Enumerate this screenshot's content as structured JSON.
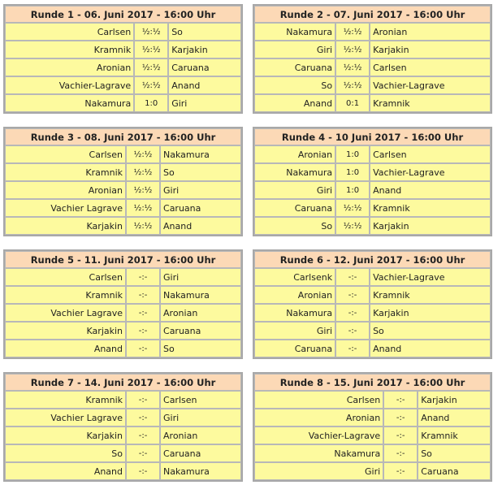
{
  "rounds": [
    {
      "title": "Runde 1 - 06. Juni 2017 - 16:00 Uhr",
      "games": [
        [
          "Carlsen",
          "½:½",
          "So"
        ],
        [
          "Kramnik",
          "½:½",
          "Karjakin"
        ],
        [
          "Aronian",
          "½:½",
          "Caruana"
        ],
        [
          "Vachier-Lagrave",
          "½:½",
          "Anand"
        ],
        [
          "Nakamura",
          "1:0",
          "Giri"
        ]
      ]
    },
    {
      "title": "Runde 2 - 07. Juni 2017 - 16:00 Uhr",
      "games": [
        [
          "Nakamura",
          "½:½",
          "Aronian"
        ],
        [
          "Giri",
          "½:½",
          "Karjakin"
        ],
        [
          "Caruana",
          "½:½",
          "Carlsen"
        ],
        [
          "So",
          "½:½",
          "Vachier-Lagrave"
        ],
        [
          "Anand",
          "0:1",
          "Kramnik"
        ]
      ]
    },
    {
      "title": "Runde 3 - 08. Juni 2017 - 16:00 Uhr",
      "games": [
        [
          "Carlsen",
          "½:½",
          "Nakamura"
        ],
        [
          "Kramnik",
          "½:½",
          "So"
        ],
        [
          "Aronian",
          "½:½",
          "Giri"
        ],
        [
          "Vachier Lagrave",
          "½:½",
          "Caruana"
        ],
        [
          "Karjakin",
          "½:½",
          "Anand"
        ]
      ]
    },
    {
      "title": "Runde 4 - 10 Juni 2017 - 16:00 Uhr",
      "games": [
        [
          "Aronian",
          "1:0",
          "Carlsen"
        ],
        [
          "Nakamura",
          "1:0",
          "Vachier-Lagrave"
        ],
        [
          "Giri",
          "1:0",
          "Anand"
        ],
        [
          "Caruana",
          "½:½",
          "Kramnik"
        ],
        [
          "So",
          "½:½",
          "Karjakin"
        ]
      ]
    },
    {
      "title": "Runde 5 - 11. Juni 2017 - 16:00 Uhr",
      "games": [
        [
          "Carlsen",
          "-:-",
          "Giri"
        ],
        [
          "Kramnik",
          "-:-",
          "Nakamura"
        ],
        [
          "Vachier Lagrave",
          "-:-",
          "Aronian"
        ],
        [
          "Karjakin",
          "-:-",
          "Caruana"
        ],
        [
          "Anand",
          "-:-",
          "So"
        ]
      ]
    },
    {
      "title": "Runde 6 - 12. Juni 2017 - 16:00 Uhr",
      "games": [
        [
          "Carlsenk",
          "-:-",
          "Vachier-Lagrave"
        ],
        [
          "Aronian",
          "-:-",
          "Kramnik"
        ],
        [
          "Nakamura",
          "-:-",
          "Karjakin"
        ],
        [
          "Giri",
          "-:-",
          "So"
        ],
        [
          "Caruana",
          "-:-",
          "Anand"
        ]
      ]
    },
    {
      "title": "Runde 7 - 14. Juni 2017 - 16:00 Uhr",
      "games": [
        [
          "Kramnik",
          "-:-",
          "Carlsen"
        ],
        [
          "Vachier Lagrave",
          "-:-",
          "Giri"
        ],
        [
          "Karjakin",
          "-:-",
          "Aronian"
        ],
        [
          "So",
          "-:-",
          "Caruana"
        ],
        [
          "Anand",
          "-:-",
          "Nakamura"
        ]
      ]
    },
    {
      "title": "Runde 8 - 15. Juni 2017 - 16:00 Uhr",
      "games": [
        [
          "Carlsen",
          "-:-",
          "Karjakin"
        ],
        [
          "Aronian",
          "-:-",
          "Anand"
        ],
        [
          "Vachier-Lagrave",
          "-:-",
          "Kramnik"
        ],
        [
          "Nakamura",
          "-:-",
          "So"
        ],
        [
          "Giri",
          "-:-",
          "Caruana"
        ]
      ]
    }
  ],
  "colors": {
    "header_bg": "#fcd9b6",
    "cell_bg": "#fdfa9e",
    "border": "#a8a8a8"
  }
}
